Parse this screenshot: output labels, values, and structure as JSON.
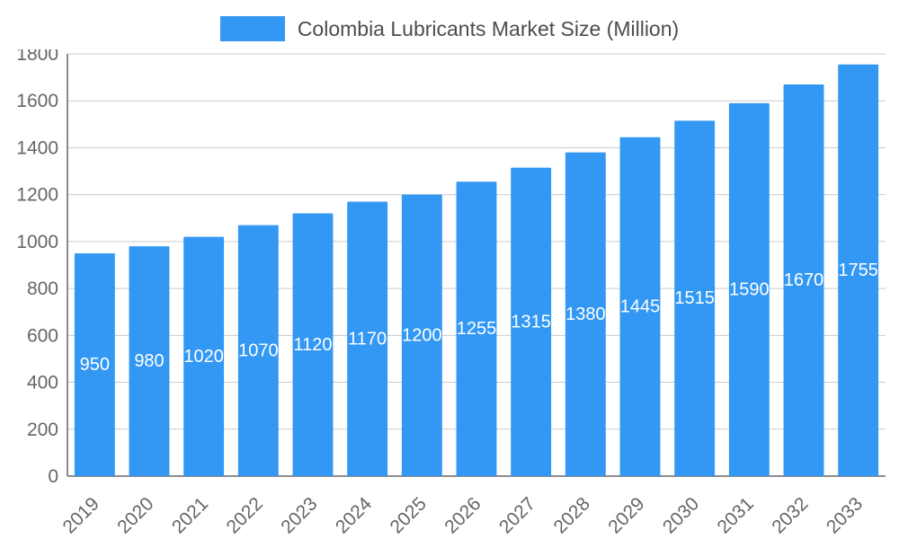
{
  "legend": {
    "title": "Colombia Lubricants Market Size (Million)"
  },
  "chart_data": {
    "type": "bar",
    "title": "Colombia Lubricants Market Size (Million)",
    "categories": [
      "2019",
      "2020",
      "2021",
      "2022",
      "2023",
      "2024",
      "2025",
      "2026",
      "2027",
      "2028",
      "2029",
      "2030",
      "2031",
      "2032",
      "2033"
    ],
    "values": [
      950,
      980,
      1020,
      1070,
      1120,
      1170,
      1200,
      1255,
      1315,
      1380,
      1445,
      1515,
      1590,
      1670,
      1755
    ],
    "xlabel": "",
    "ylabel": "",
    "ylim": [
      0,
      1800
    ],
    "ytick_step": 200,
    "yticks": [
      0,
      200,
      400,
      600,
      800,
      1000,
      1200,
      1400,
      1600,
      1800
    ],
    "grid": true,
    "legend_position": "top",
    "bar_color": "#3398f3",
    "bar_label_color": "#ffffff",
    "tick_label_color": "#666666",
    "grid_color": "#cccccc",
    "axis_color": "#8c8c8c"
  }
}
